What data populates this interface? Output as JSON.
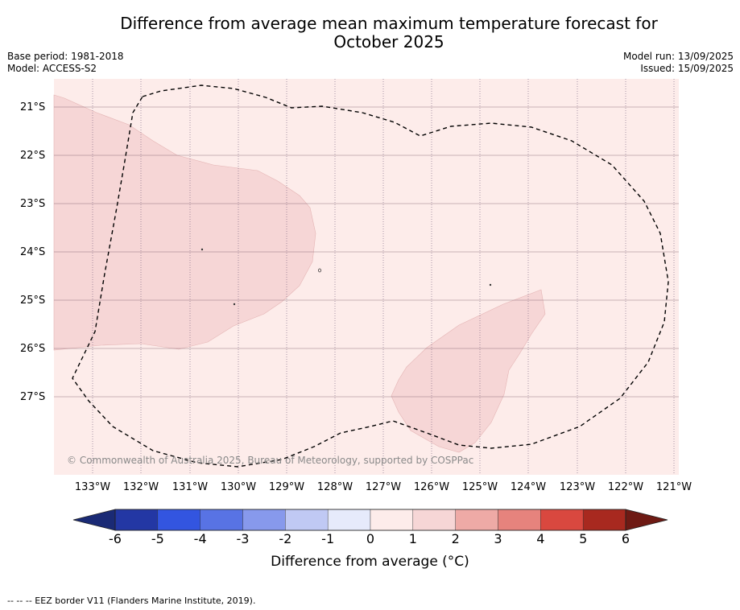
{
  "title_line1": "Difference from average mean maximum temperature forecast for",
  "title_line2": "October 2025",
  "base_period": "Base period: 1981-2018",
  "model": "Model: ACCESS-S2",
  "model_run": "Model run: 13/09/2025",
  "issued": "Issued: 15/09/2025",
  "copyright": "© Commonwealth of Australia 2025, Bureau of Meteorology, supported by COSPPac",
  "lat_labels": [
    "21°S",
    "22°S",
    "23°S",
    "24°S",
    "25°S",
    "26°S",
    "27°S"
  ],
  "lon_labels": [
    "133°W",
    "132°W",
    "131°W",
    "130°W",
    "129°W",
    "128°W",
    "127°W",
    "126°W",
    "125°W",
    "124°W",
    "123°W",
    "122°W",
    "121°W"
  ],
  "colorbar": {
    "ticks": [
      "-6",
      "-5",
      "-4",
      "-3",
      "-2",
      "-1",
      "0",
      "1",
      "2",
      "3",
      "4",
      "5",
      "6"
    ],
    "colors": [
      "#2337a4",
      "#3355e0",
      "#5873e4",
      "#8799ec",
      "#c0c9f4",
      "#e6eafb",
      "#fdecea",
      "#f6d6d6",
      "#eeaaa6",
      "#e6837d",
      "#d9483f",
      "#a8291f"
    ],
    "low_extend_color": "#1a2a75",
    "high_extend_color": "#6e1a14",
    "label": "Difference from average (°C)"
  },
  "map_colors": {
    "background_0_1": "#fdecea",
    "region_1_2": "#f6d6d6"
  },
  "footer": "--  --  -- EEZ border V11 (Flanders Marine Institute, 2019)."
}
